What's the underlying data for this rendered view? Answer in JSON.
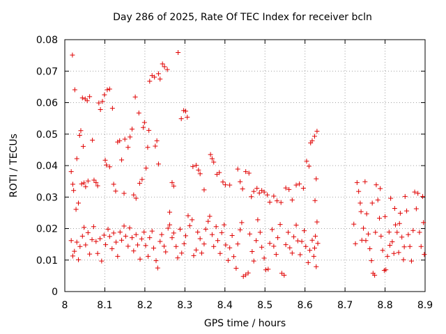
{
  "chart_data": {
    "type": "scatter",
    "title": "Day 286 of 2025, Rate Of TEC Index for receiver bcln",
    "xlabel": "GPS time / hours",
    "ylabel": "ROTI / TECUs",
    "xlim": [
      8.0,
      8.9
    ],
    "ylim": [
      0.0,
      0.08
    ],
    "xticks": [
      "8",
      "8.1",
      "8.2",
      "8.3",
      "8.4",
      "8.5",
      "8.6",
      "8.7",
      "8.8",
      "8.9"
    ],
    "yticks": [
      "0",
      "0.01",
      "0.02",
      "0.03",
      "0.04",
      "0.05",
      "0.06",
      "0.07",
      "0.08"
    ],
    "grid": true,
    "marker": "+",
    "color": "#e00000",
    "series": [
      {
        "points": [
          [
            8.019,
            0.0751
          ],
          [
            8.025,
            0.0641
          ],
          [
            8.016,
            0.0381
          ],
          [
            8.02,
            0.0341
          ],
          [
            8.022,
            0.0321
          ],
          [
            8.03,
            0.0422
          ],
          [
            8.028,
            0.0261
          ],
          [
            8.034,
            0.0281
          ],
          [
            8.037,
            0.0496
          ],
          [
            8.04,
            0.0511
          ],
          [
            8.046,
            0.0461
          ],
          [
            8.042,
            0.0342
          ],
          [
            8.048,
            0.0345
          ],
          [
            8.052,
            0.0333
          ],
          [
            8.058,
            0.0351
          ],
          [
            8.044,
            0.0615
          ],
          [
            8.051,
            0.0612
          ],
          [
            8.056,
            0.0606
          ],
          [
            8.062,
            0.0619
          ],
          [
            8.069,
            0.0481
          ],
          [
            8.073,
            0.0354
          ],
          [
            8.078,
            0.0346
          ],
          [
            8.082,
            0.0336
          ],
          [
            8.085,
            0.0599
          ],
          [
            8.089,
            0.0578
          ],
          [
            8.094,
            0.0604
          ],
          [
            8.099,
            0.0625
          ],
          [
            8.101,
            0.0417
          ],
          [
            8.104,
            0.0402
          ],
          [
            8.112,
            0.0396
          ],
          [
            8.106,
            0.0641
          ],
          [
            8.112,
            0.0643
          ],
          [
            8.119,
            0.0582
          ],
          [
            8.122,
            0.0341
          ],
          [
            8.127,
            0.0319
          ],
          [
            8.132,
            0.0475
          ],
          [
            8.137,
            0.0479
          ],
          [
            8.142,
            0.0418
          ],
          [
            8.148,
            0.0312
          ],
          [
            8.15,
            0.0484
          ],
          [
            8.158,
            0.0458
          ],
          [
            8.163,
            0.0491
          ],
          [
            8.168,
            0.0516
          ],
          [
            8.172,
            0.0307
          ],
          [
            8.176,
            0.0618
          ],
          [
            8.178,
            0.0296
          ],
          [
            8.185,
            0.0567
          ],
          [
            8.187,
            0.0344
          ],
          [
            8.193,
            0.0356
          ],
          [
            8.196,
            0.0521
          ],
          [
            8.199,
            0.0537
          ],
          [
            8.203,
            0.0392
          ],
          [
            8.207,
            0.0458
          ],
          [
            8.21,
            0.0512
          ],
          [
            8.212,
            0.0668
          ],
          [
            8.218,
            0.0686
          ],
          [
            8.224,
            0.0681
          ],
          [
            8.226,
            0.0462
          ],
          [
            8.23,
            0.0479
          ],
          [
            8.234,
            0.0692
          ],
          [
            8.238,
            0.0675
          ],
          [
            8.234,
            0.0405
          ],
          [
            8.244,
            0.0723
          ],
          [
            8.249,
            0.0714
          ],
          [
            8.256,
            0.0705
          ],
          [
            8.262,
            0.0252
          ],
          [
            8.268,
            0.0346
          ],
          [
            8.272,
            0.0335
          ],
          [
            8.283,
            0.0759
          ],
          [
            8.291,
            0.0549
          ],
          [
            8.297,
            0.0575
          ],
          [
            8.302,
            0.0573
          ],
          [
            8.306,
            0.0554
          ],
          [
            8.32,
            0.0397
          ],
          [
            8.328,
            0.0401
          ],
          [
            8.334,
            0.0386
          ],
          [
            8.338,
            0.0374
          ],
          [
            8.348,
            0.0323
          ],
          [
            8.364,
            0.0435
          ],
          [
            8.368,
            0.0422
          ],
          [
            8.372,
            0.0411
          ],
          [
            8.38,
            0.0372
          ],
          [
            8.386,
            0.0378
          ],
          [
            8.395,
            0.0348
          ],
          [
            8.401,
            0.0339
          ],
          [
            8.412,
            0.0338
          ],
          [
            8.432,
            0.0389
          ],
          [
            8.438,
            0.0349
          ],
          [
            8.444,
            0.0326
          ],
          [
            8.452,
            0.0381
          ],
          [
            8.46,
            0.0376
          ],
          [
            8.466,
            0.0301
          ],
          [
            8.472,
            0.0318
          ],
          [
            8.48,
            0.0328
          ],
          [
            8.486,
            0.0313
          ],
          [
            8.492,
            0.0321
          ],
          [
            8.498,
            0.0316
          ],
          [
            8.506,
            0.0307
          ],
          [
            8.512,
            0.0284
          ],
          [
            8.522,
            0.0303
          ],
          [
            8.53,
            0.0288
          ],
          [
            8.54,
            0.0283
          ],
          [
            8.552,
            0.0329
          ],
          [
            8.56,
            0.0324
          ],
          [
            8.568,
            0.0291
          ],
          [
            8.578,
            0.0338
          ],
          [
            8.586,
            0.0342
          ],
          [
            8.596,
            0.0328
          ],
          [
            8.604,
            0.0414
          ],
          [
            8.61,
            0.0398
          ],
          [
            8.614,
            0.0472
          ],
          [
            8.618,
            0.0479
          ],
          [
            8.624,
            0.0493
          ],
          [
            8.63,
            0.0509
          ],
          [
            8.628,
            0.0358
          ],
          [
            8.625,
            0.0289
          ],
          [
            8.016,
            0.0162
          ],
          [
            8.02,
            0.0113
          ],
          [
            8.024,
            0.0128
          ],
          [
            8.03,
            0.0157
          ],
          [
            8.034,
            0.0101
          ],
          [
            8.038,
            0.0143
          ],
          [
            8.044,
            0.0176
          ],
          [
            8.048,
            0.0204
          ],
          [
            8.052,
            0.0148
          ],
          [
            8.058,
            0.0187
          ],
          [
            8.062,
            0.0119
          ],
          [
            8.068,
            0.0165
          ],
          [
            8.072,
            0.0206
          ],
          [
            8.078,
            0.0159
          ],
          [
            8.082,
            0.0121
          ],
          [
            8.088,
            0.0168
          ],
          [
            8.092,
            0.0097
          ],
          [
            8.098,
            0.0179
          ],
          [
            8.102,
            0.0149
          ],
          [
            8.108,
            0.0198
          ],
          [
            8.112,
            0.0175
          ],
          [
            8.118,
            0.0136
          ],
          [
            8.122,
            0.0186
          ],
          [
            8.128,
            0.0157
          ],
          [
            8.132,
            0.0112
          ],
          [
            8.138,
            0.0189
          ],
          [
            8.142,
            0.0163
          ],
          [
            8.148,
            0.0208
          ],
          [
            8.152,
            0.0176
          ],
          [
            8.158,
            0.0144
          ],
          [
            8.162,
            0.0202
          ],
          [
            8.168,
            0.0171
          ],
          [
            8.172,
            0.0129
          ],
          [
            8.178,
            0.0181
          ],
          [
            8.182,
            0.0148
          ],
          [
            8.188,
            0.0103
          ],
          [
            8.192,
            0.0167
          ],
          [
            8.198,
            0.0189
          ],
          [
            8.202,
            0.0146
          ],
          [
            8.208,
            0.0112
          ],
          [
            8.212,
            0.0171
          ],
          [
            8.218,
            0.0192
          ],
          [
            8.222,
            0.0138
          ],
          [
            8.228,
            0.0098
          ],
          [
            8.232,
            0.0075
          ],
          [
            8.238,
            0.0159
          ],
          [
            8.242,
            0.0181
          ],
          [
            8.248,
            0.0144
          ],
          [
            8.252,
            0.0126
          ],
          [
            8.258,
            0.0201
          ],
          [
            8.262,
            0.0212
          ],
          [
            8.268,
            0.0171
          ],
          [
            8.272,
            0.0186
          ],
          [
            8.278,
            0.0143
          ],
          [
            8.282,
            0.0107
          ],
          [
            8.288,
            0.0198
          ],
          [
            8.292,
            0.0122
          ],
          [
            8.298,
            0.0152
          ],
          [
            8.302,
            0.0177
          ],
          [
            8.308,
            0.0241
          ],
          [
            8.312,
            0.0209
          ],
          [
            8.318,
            0.0228
          ],
          [
            8.322,
            0.0114
          ],
          [
            8.328,
            0.0132
          ],
          [
            8.332,
            0.0189
          ],
          [
            8.338,
            0.0168
          ],
          [
            8.342,
            0.0122
          ],
          [
            8.348,
            0.0151
          ],
          [
            8.352,
            0.0198
          ],
          [
            8.358,
            0.0223
          ],
          [
            8.362,
            0.0239
          ],
          [
            8.368,
            0.0181
          ],
          [
            8.372,
            0.0143
          ],
          [
            8.378,
            0.0206
          ],
          [
            8.382,
            0.0162
          ],
          [
            8.388,
            0.0121
          ],
          [
            8.392,
            0.0187
          ],
          [
            8.398,
            0.0212
          ],
          [
            8.402,
            0.0148
          ],
          [
            8.408,
            0.0099
          ],
          [
            8.412,
            0.0139
          ],
          [
            8.418,
            0.0178
          ],
          [
            8.422,
            0.0111
          ],
          [
            8.428,
            0.0074
          ],
          [
            8.432,
            0.0151
          ],
          [
            8.438,
            0.0196
          ],
          [
            8.442,
            0.0219
          ],
          [
            8.446,
            0.0048
          ],
          [
            8.452,
            0.0053
          ],
          [
            8.458,
            0.0059
          ],
          [
            8.462,
            0.0183
          ],
          [
            8.468,
            0.0127
          ],
          [
            8.472,
            0.0097
          ],
          [
            8.478,
            0.0162
          ],
          [
            8.482,
            0.0228
          ],
          [
            8.488,
            0.0188
          ],
          [
            8.492,
            0.0141
          ],
          [
            8.498,
            0.0106
          ],
          [
            8.502,
            0.0069
          ],
          [
            8.508,
            0.0071
          ],
          [
            8.512,
            0.0153
          ],
          [
            8.518,
            0.0197
          ],
          [
            8.522,
            0.0144
          ],
          [
            8.528,
            0.0118
          ],
          [
            8.532,
            0.0171
          ],
          [
            8.538,
            0.0213
          ],
          [
            8.542,
            0.0058
          ],
          [
            8.548,
            0.0052
          ],
          [
            8.552,
            0.0149
          ],
          [
            8.558,
            0.0188
          ],
          [
            8.562,
            0.0139
          ],
          [
            8.568,
            0.0122
          ],
          [
            8.572,
            0.0174
          ],
          [
            8.578,
            0.0211
          ],
          [
            8.582,
            0.0161
          ],
          [
            8.588,
            0.0117
          ],
          [
            8.592,
            0.0159
          ],
          [
            8.598,
            0.0193
          ],
          [
            8.602,
            0.0143
          ],
          [
            8.608,
            0.0092
          ],
          [
            8.612,
            0.0131
          ],
          [
            8.618,
            0.0163
          ],
          [
            8.622,
            0.0112
          ],
          [
            8.628,
            0.0079
          ],
          [
            8.632,
            0.0153
          ],
          [
            8.63,
            0.0221
          ],
          [
            8.626,
            0.0176
          ],
          [
            8.624,
            0.0138
          ],
          [
            8.722,
            0.0214
          ],
          [
            8.726,
            0.0152
          ],
          [
            8.73,
            0.0346
          ],
          [
            8.734,
            0.0318
          ],
          [
            8.738,
            0.0281
          ],
          [
            8.742,
            0.0163
          ],
          [
            8.746,
            0.0201
          ],
          [
            8.75,
            0.0349
          ],
          [
            8.754,
            0.0247
          ],
          [
            8.758,
            0.0183
          ],
          [
            8.762,
            0.0136
          ],
          [
            8.766,
            0.0098
          ],
          [
            8.77,
            0.0058
          ],
          [
            8.774,
            0.0052
          ],
          [
            8.778,
            0.0339
          ],
          [
            8.782,
            0.0291
          ],
          [
            8.786,
            0.0233
          ],
          [
            8.79,
            0.0176
          ],
          [
            8.794,
            0.0131
          ],
          [
            8.798,
            0.0067
          ],
          [
            8.802,
            0.0069
          ],
          [
            8.806,
            0.0112
          ],
          [
            8.81,
            0.0189
          ],
          [
            8.814,
            0.0296
          ],
          [
            8.818,
            0.0158
          ],
          [
            8.822,
            0.0121
          ],
          [
            8.826,
            0.0212
          ],
          [
            8.83,
            0.0188
          ],
          [
            8.834,
            0.0124
          ],
          [
            8.838,
            0.0249
          ],
          [
            8.842,
            0.0173
          ],
          [
            8.846,
            0.0101
          ],
          [
            8.85,
            0.0302
          ],
          [
            8.854,
            0.0256
          ],
          [
            8.858,
            0.0181
          ],
          [
            8.862,
            0.0143
          ],
          [
            8.866,
            0.0097
          ],
          [
            8.87,
            0.0194
          ],
          [
            8.874,
            0.0316
          ],
          [
            8.878,
            0.0263
          ],
          [
            8.882,
            0.0312
          ],
          [
            8.886,
            0.0188
          ],
          [
            8.89,
            0.0143
          ],
          [
            8.894,
            0.0302
          ],
          [
            8.898,
            0.0118
          ],
          [
            8.896,
            0.0219
          ],
          [
            8.74,
            0.0254
          ],
          [
            8.752,
            0.0162
          ],
          [
            8.768,
            0.0281
          ],
          [
            8.776,
            0.0188
          ],
          [
            8.788,
            0.0327
          ],
          [
            8.8,
            0.0238
          ],
          [
            8.812,
            0.0147
          ],
          [
            8.824,
            0.0264
          ],
          [
            8.836,
            0.0216
          ],
          [
            8.848,
            0.0142
          ]
        ]
      }
    ]
  }
}
